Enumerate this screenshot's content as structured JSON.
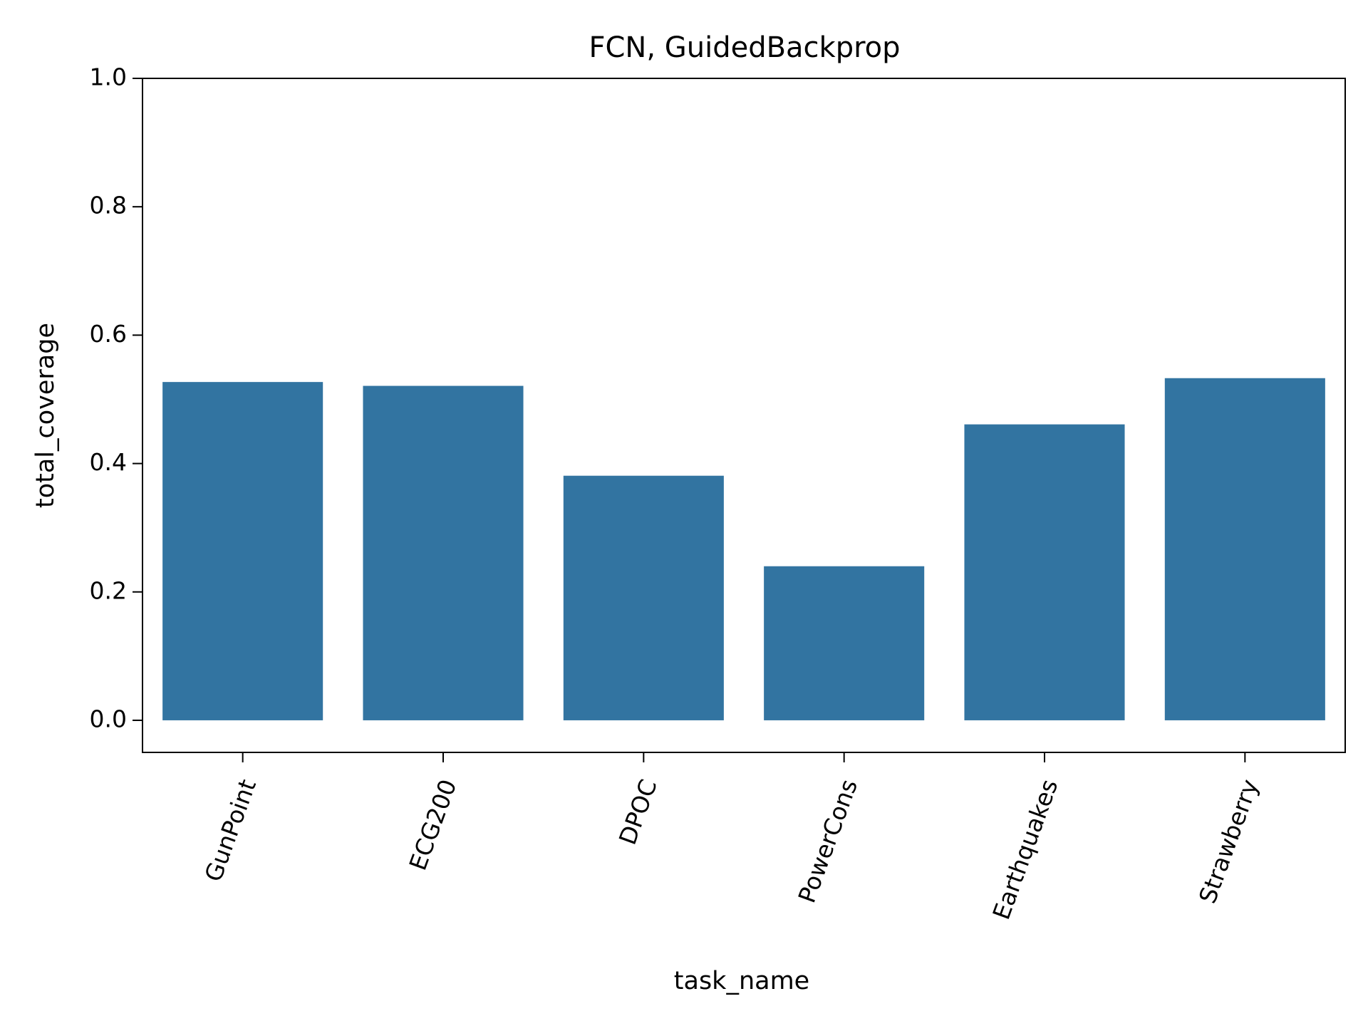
{
  "chart_data": {
    "type": "bar",
    "title": "FCN, GuidedBackprop",
    "xlabel": "task_name",
    "ylabel": "total_coverage",
    "categories": [
      "GunPoint",
      "ECG200",
      "DPOC",
      "PowerCons",
      "Earthquakes",
      "Strawberry"
    ],
    "values": [
      0.527,
      0.521,
      0.381,
      0.24,
      0.461,
      0.533
    ],
    "ylim": [
      -0.05,
      1.0
    ],
    "yticks": [
      0.0,
      0.2,
      0.4,
      0.6,
      0.8,
      1.0
    ],
    "ytick_labels": [
      "0.0",
      "0.2",
      "0.4",
      "0.6",
      "0.8",
      "1.0"
    ],
    "grid": false,
    "bar_color": "#3274a1"
  }
}
